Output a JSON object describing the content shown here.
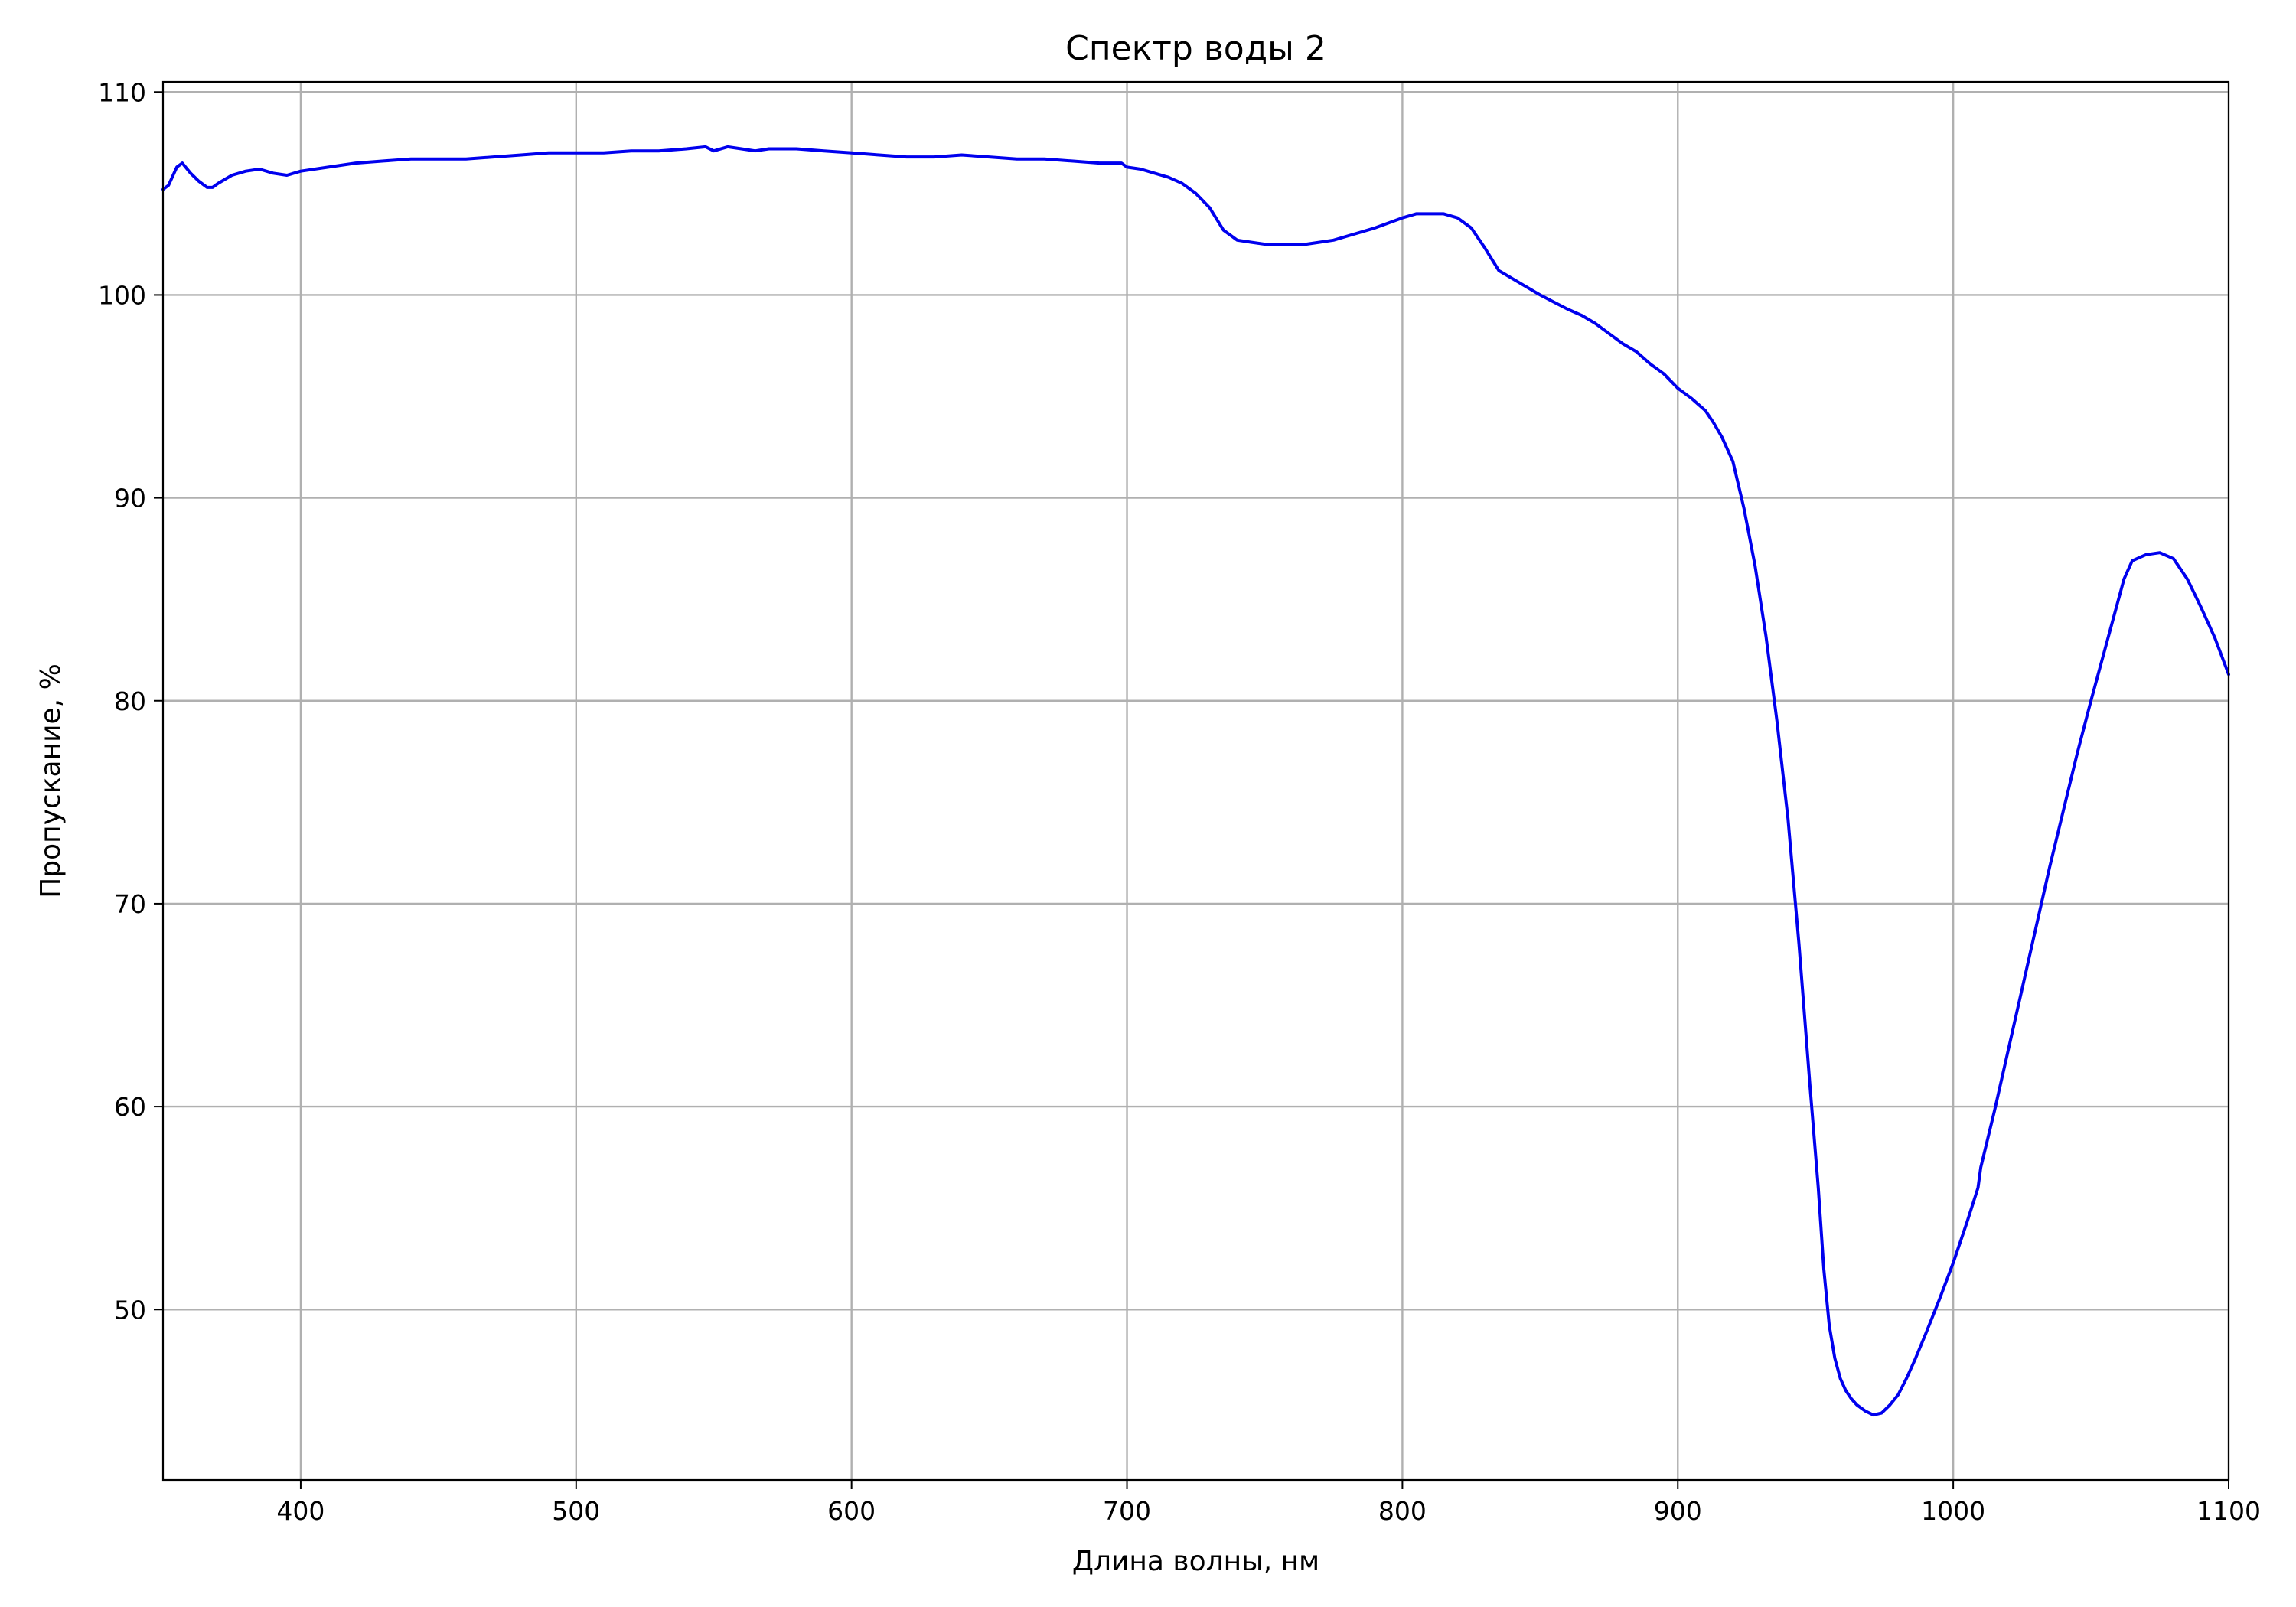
{
  "chart_data": {
    "type": "line",
    "title": "Спектр воды 2",
    "xlabel": "Длина волны, нм",
    "ylabel": "Пропускание, %",
    "xlim": [
      350,
      1100
    ],
    "ylim": [
      41.6,
      110.5
    ],
    "x_ticks": [
      400,
      500,
      600,
      700,
      800,
      900,
      1000,
      1100
    ],
    "y_ticks": [
      50,
      60,
      70,
      80,
      90,
      100,
      110
    ],
    "grid": true,
    "series": [
      {
        "color": "#0000ee",
        "x": [
          350,
          352,
          355,
          357,
          360,
          363,
          366,
          368,
          370,
          375,
          380,
          385,
          390,
          395,
          400,
          410,
          420,
          430,
          440,
          450,
          460,
          470,
          480,
          490,
          500,
          510,
          520,
          530,
          540,
          547,
          550,
          555,
          560,
          565,
          570,
          580,
          590,
          600,
          610,
          620,
          630,
          640,
          650,
          660,
          670,
          680,
          690,
          698,
          700,
          705,
          710,
          715,
          720,
          725,
          730,
          735,
          740,
          745,
          750,
          755,
          760,
          765,
          770,
          775,
          780,
          790,
          800,
          805,
          810,
          815,
          820,
          825,
          830,
          835,
          840,
          845,
          850,
          860,
          865,
          870,
          875,
          880,
          885,
          890,
          895,
          900,
          905,
          910,
          913,
          916,
          920,
          924,
          928,
          932,
          936,
          940,
          944,
          948,
          951,
          953,
          955,
          957,
          959,
          961,
          963,
          965,
          968,
          971,
          974,
          977,
          980,
          983,
          986,
          990,
          995,
          1000,
          1005,
          1009,
          1010,
          1015,
          1020,
          1025,
          1030,
          1035,
          1040,
          1045,
          1050,
          1055,
          1058,
          1062,
          1065,
          1070,
          1075,
          1080,
          1085,
          1090,
          1095,
          1100
        ],
        "values": [
          105.2,
          105.4,
          106.3,
          106.5,
          106.0,
          105.6,
          105.3,
          105.3,
          105.5,
          105.9,
          106.1,
          106.2,
          106.0,
          105.9,
          106.1,
          106.3,
          106.5,
          106.6,
          106.7,
          106.7,
          106.7,
          106.8,
          106.9,
          107.0,
          107.0,
          107.0,
          107.1,
          107.1,
          107.2,
          107.3,
          107.1,
          107.3,
          107.2,
          107.1,
          107.2,
          107.2,
          107.1,
          107.0,
          106.9,
          106.8,
          106.8,
          106.9,
          106.8,
          106.7,
          106.7,
          106.6,
          106.5,
          106.5,
          106.3,
          106.2,
          106.0,
          105.8,
          105.5,
          105.0,
          104.3,
          103.2,
          102.7,
          102.6,
          102.5,
          102.5,
          102.5,
          102.5,
          102.6,
          102.7,
          102.9,
          103.3,
          103.8,
          104.0,
          104.0,
          104.0,
          103.8,
          103.3,
          102.3,
          101.2,
          100.8,
          100.4,
          100.0,
          99.3,
          99.0,
          98.6,
          98.1,
          97.6,
          97.2,
          96.6,
          96.1,
          95.4,
          94.9,
          94.3,
          93.7,
          93.0,
          91.8,
          89.5,
          86.7,
          83.2,
          79.0,
          74.2,
          68.0,
          61.0,
          56.0,
          52.0,
          49.2,
          47.6,
          46.6,
          46.0,
          45.6,
          45.3,
          45.0,
          44.8,
          44.9,
          45.3,
          45.8,
          46.6,
          47.5,
          48.8,
          50.5,
          52.3,
          54.3,
          56.0,
          57.0,
          59.8,
          62.8,
          65.8,
          68.8,
          71.8,
          74.6,
          77.4,
          80.0,
          82.5,
          84.0,
          86.0,
          86.9,
          87.2,
          87.3,
          87.0,
          86.0,
          84.6,
          83.1,
          81.3
        ]
      }
    ]
  }
}
